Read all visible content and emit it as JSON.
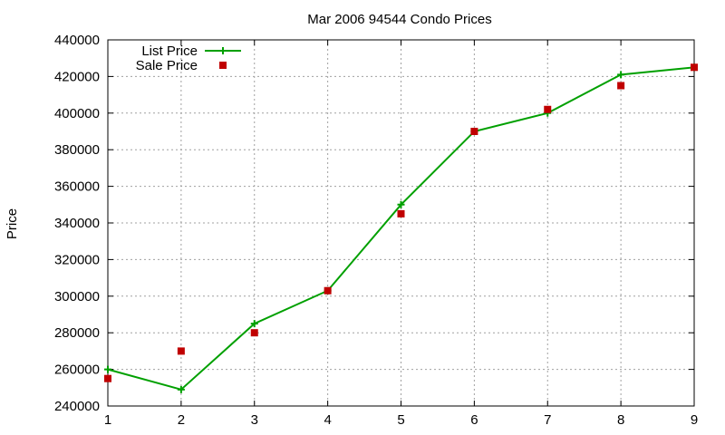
{
  "chart_data": {
    "type": "line",
    "title": "Mar 2006 94544 Condo Prices",
    "xlabel": "",
    "ylabel": "Price",
    "x": [
      1,
      2,
      3,
      4,
      5,
      6,
      7,
      8,
      9
    ],
    "xlim": [
      1,
      9
    ],
    "ylim": [
      240000,
      440000
    ],
    "xticks": [
      "1",
      "2",
      "3",
      "4",
      "5",
      "6",
      "7",
      "8",
      "9"
    ],
    "yticks": [
      "240000",
      "260000",
      "280000",
      "300000",
      "320000",
      "340000",
      "360000",
      "380000",
      "400000",
      "420000",
      "440000"
    ],
    "grid": true,
    "legend_position": "top-left",
    "series": [
      {
        "name": "List Price",
        "style": "lines+points",
        "marker": "plus",
        "color": "#00a000",
        "values": [
          260000,
          249000,
          285000,
          303000,
          350000,
          390000,
          400000,
          421000,
          425000
        ]
      },
      {
        "name": "Sale Price",
        "style": "points",
        "marker": "square",
        "color": "#c00000",
        "values": [
          255000,
          270000,
          280000,
          303000,
          345000,
          390000,
          402000,
          415000,
          425000
        ]
      }
    ]
  }
}
